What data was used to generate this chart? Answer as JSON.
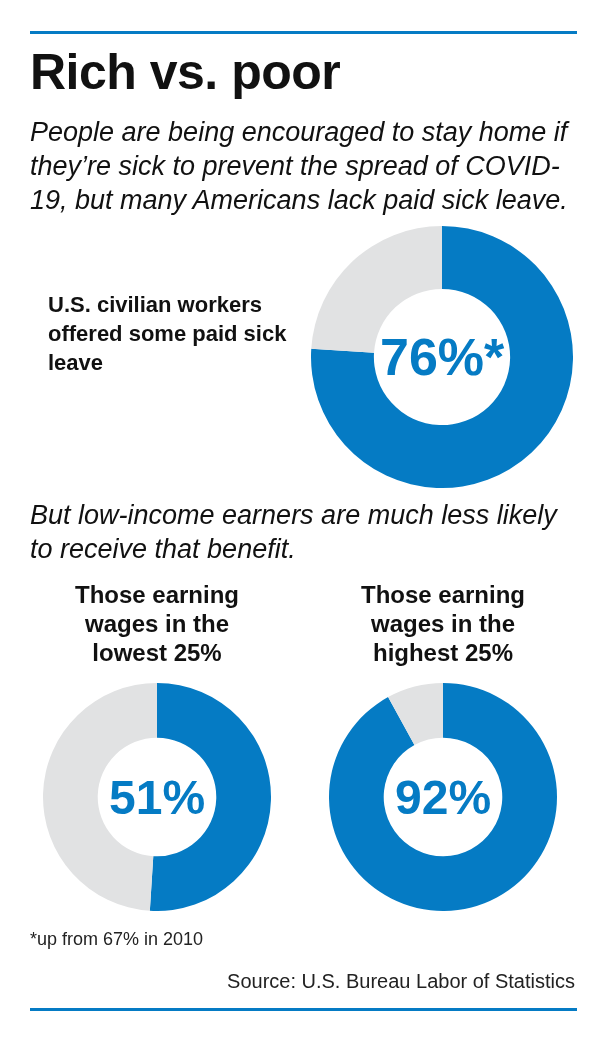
{
  "chart_data": [
    {
      "type": "donut",
      "title": "Rich vs. poor",
      "subtitle": "People are being encouraged to stay home if they’re sick to prevent the spread of COVID-19, but many Americans lack paid sick leave.",
      "categories": [
        null,
        null
      ],
      "values": [
        76,
        24
      ],
      "colors": [
        "#057bc4",
        "#e1e2e3"
      ],
      "value_labels": [
        "76%*",
        null
      ],
      "annotations": [
        "U.S. civilian workers offered some paid sick leave"
      ]
    },
    {
      "type": "donut",
      "subtitle": "But low-income earners are much less likely to receive that benefit.",
      "title": "Those earning wages in the lowest 25%",
      "categories": [
        null,
        null
      ],
      "values": [
        51,
        49
      ],
      "colors": [
        "#057bc4",
        "#e1e2e3"
      ],
      "value_labels": [
        "51%",
        null
      ]
    },
    {
      "type": "donut",
      "title": "Those earning wages in the highest 25%",
      "categories": [
        null,
        null
      ],
      "values": [
        92,
        8
      ],
      "colors": [
        "#057bc4",
        "#e1e2e3"
      ],
      "value_labels": [
        "92%",
        null
      ],
      "annotations": [
        "*up from 67% in 2010",
        "Source: U.S. Bureau Labor of Statistics"
      ]
    }
  ]
}
